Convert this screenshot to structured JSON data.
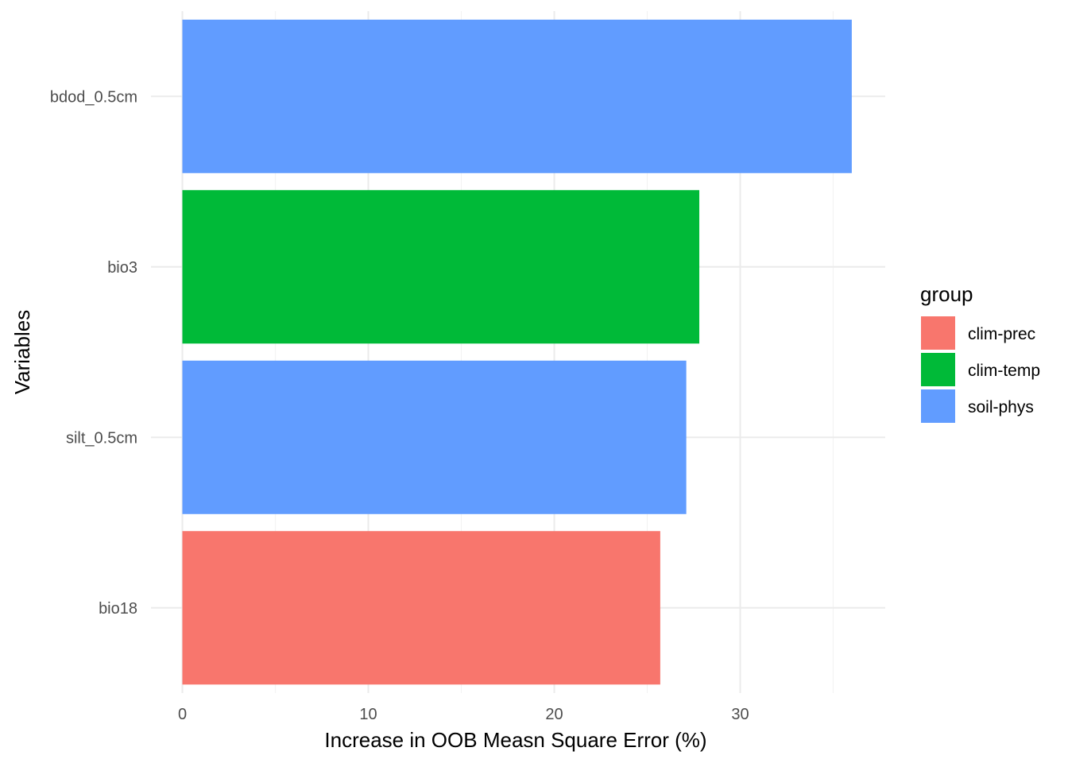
{
  "chart_data": {
    "type": "bar",
    "orientation": "horizontal",
    "categories": [
      "bdod_0.5cm",
      "bio3",
      "silt_0.5cm",
      "bio18"
    ],
    "values": [
      36.0,
      27.8,
      27.1,
      25.7
    ],
    "groups": [
      "soil-phys",
      "clim-temp",
      "soil-phys",
      "clim-prec"
    ],
    "xlabel": "Increase in OOB Measn Square Error (%)",
    "ylabel": "Variables",
    "xlim": [
      0,
      37.8
    ],
    "x_ticks": [
      0,
      10,
      20,
      30
    ],
    "grid": true,
    "legend": {
      "title": "group",
      "placement": "right",
      "entries": [
        {
          "label": "clim-prec",
          "color": "#F8766D"
        },
        {
          "label": "clim-temp",
          "color": "#00BA38"
        },
        {
          "label": "soil-phys",
          "color": "#619CFF"
        }
      ]
    }
  }
}
